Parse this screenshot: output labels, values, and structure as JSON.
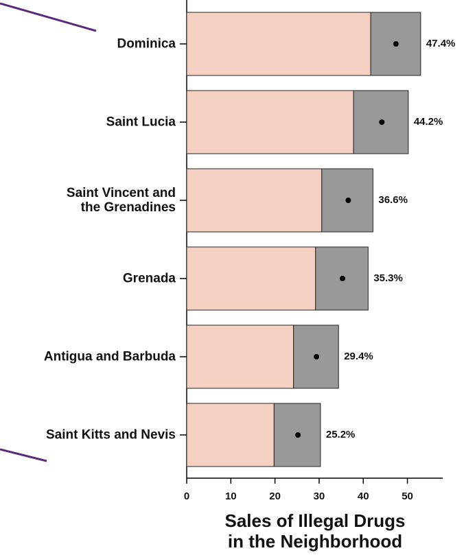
{
  "chart_data": {
    "type": "bar_ci",
    "categories": [
      "Dominica",
      "Saint Lucia",
      "Saint Vincent and\nthe Grenadines",
      "Grenada",
      "Antigua and Barbuda",
      "Saint Kitts and Nevis"
    ],
    "values": [
      47.4,
      44.2,
      36.6,
      35.3,
      29.4,
      25.2
    ],
    "value_labels": [
      "47.4%",
      "44.2%",
      "36.6%",
      "35.3%",
      "29.4%",
      "25.2%"
    ],
    "ci_lower": [
      41.7,
      37.8,
      30.6,
      29.2,
      24.2,
      19.8
    ],
    "ci_upper": [
      53.0,
      50.2,
      42.2,
      41.1,
      34.4,
      30.3
    ],
    "color": "#f5d0c2",
    "ci_color": "#999999",
    "x_label": "Sales of Illegal Drugs\nin the Neighborhood",
    "xlim": [
      0,
      58
    ],
    "xticks": [
      0,
      10,
      20,
      30,
      40,
      50
    ]
  }
}
